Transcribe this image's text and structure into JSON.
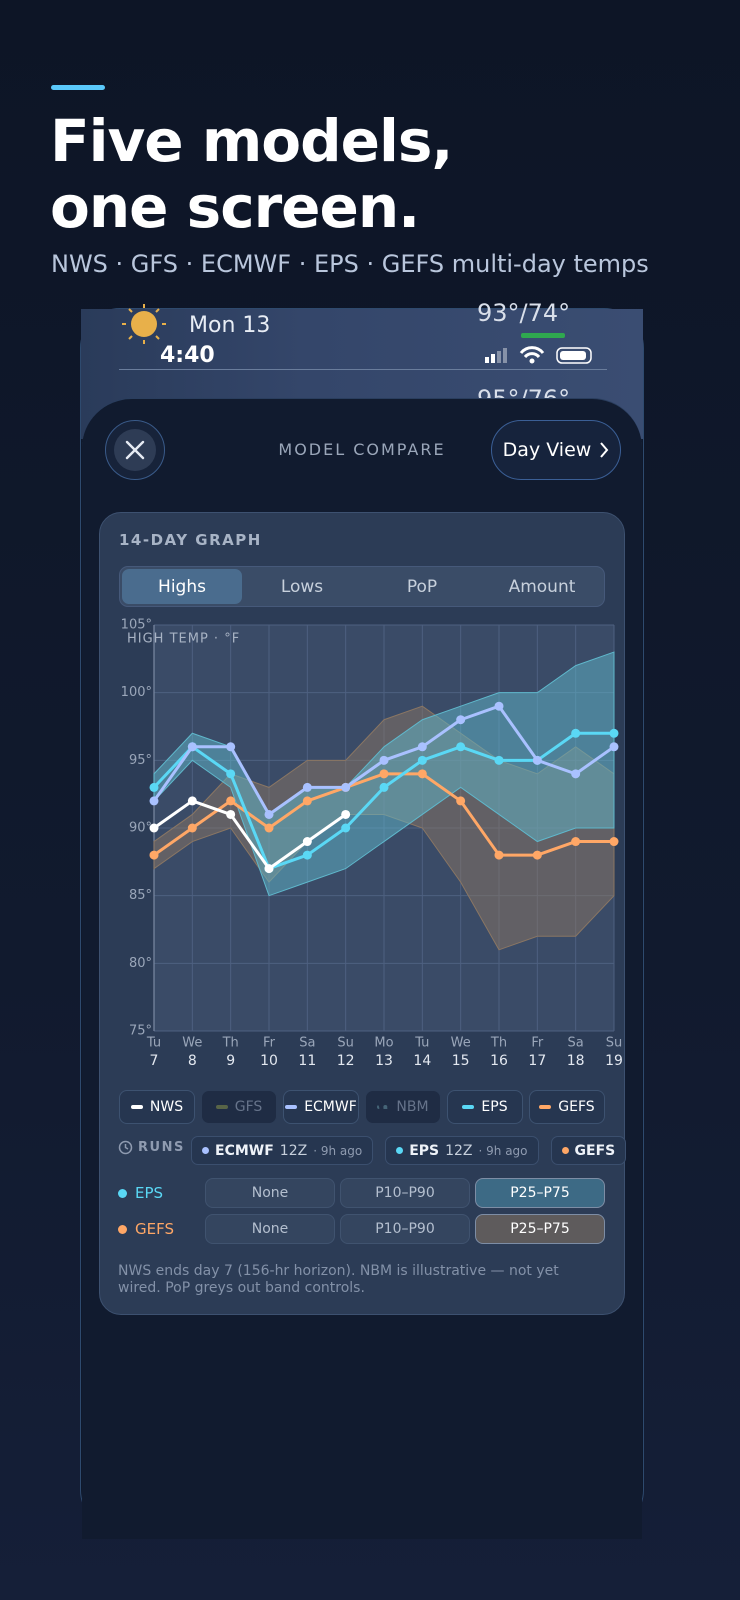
{
  "header": {
    "title_lines": [
      "Five models,",
      "one screen."
    ],
    "subtitle": "NWS · GFS · ECMWF · EPS · GEFS multi-day temps"
  },
  "background_row": {
    "day": "Mon 13",
    "time": "4:40",
    "temps": "93°/74°",
    "next_temps": "95°/76°"
  },
  "sheet": {
    "title": "MODEL COMPARE",
    "day_view": "Day View"
  },
  "card": {
    "title": "14-DAY GRAPH",
    "tabs": [
      "Highs",
      "Lows",
      "PoP",
      "Amount"
    ],
    "active_tab": 0,
    "runs": {
      "label": "RUNS",
      "items": [
        {
          "model": "ECMWF",
          "color": "#a9c1ff",
          "run": "12Z",
          "age": "· 9h ago"
        },
        {
          "model": "EPS",
          "color": "#5ad8f5",
          "run": "12Z",
          "age": "· 9h ago"
        },
        {
          "model": "GEFS",
          "color": "#ffa766"
        }
      ]
    },
    "band_controls": {
      "options": [
        "None",
        "P10–P90",
        "P25–P75"
      ],
      "rows": [
        {
          "model": "EPS",
          "color": "#5ad8f5",
          "selected": 2,
          "selected_color": "#3d6a85"
        },
        {
          "model": "GEFS",
          "color": "#ffa766",
          "selected": 2,
          "selected_color": "#5e5b5c"
        }
      ]
    },
    "footnote": "NWS ends day 7 (156-hr horizon). NBM is illustrative — not yet wired. PoP greys out band controls."
  },
  "chart_data": {
    "type": "line",
    "y_label": "HIGH TEMP · °F",
    "categories": [
      "Tu",
      "We",
      "Th",
      "Fr",
      "Sa",
      "Su",
      "Mo",
      "Tu",
      "We",
      "Th",
      "Fr",
      "Sa",
      "Su"
    ],
    "category_days": [
      7,
      8,
      9,
      10,
      11,
      12,
      13,
      14,
      15,
      16,
      17,
      18,
      19
    ],
    "ylim": [
      75,
      105
    ],
    "yticks": [
      {
        "value": 75,
        "label": "75°"
      },
      {
        "value": 80,
        "label": "80°"
      },
      {
        "value": 85,
        "label": "85°"
      },
      {
        "value": 90,
        "label": "90°"
      },
      {
        "value": 95,
        "label": "95°"
      },
      {
        "value": 100,
        "label": "100°"
      },
      {
        "value": 105,
        "label": "105°"
      }
    ],
    "grid": true,
    "series": [
      {
        "name": "NWS",
        "color": "#ffffff",
        "enabled": true,
        "values": [
          90,
          92,
          91,
          87,
          89,
          91,
          null,
          null,
          null,
          null,
          null,
          null,
          null
        ]
      },
      {
        "name": "GFS",
        "color": "#7f8a4a",
        "enabled": false,
        "values": [
          null,
          null,
          null,
          null,
          null,
          null,
          null,
          null,
          null,
          null,
          null,
          null,
          null
        ]
      },
      {
        "name": "ECMWF",
        "color": "#a9c1ff",
        "enabled": true,
        "values": [
          92,
          96,
          96,
          91,
          93,
          93,
          95,
          96,
          98,
          99,
          95,
          94,
          96
        ]
      },
      {
        "name": "NBM",
        "color": "#5f8a99",
        "enabled": false,
        "line_style": "dotted",
        "values": [
          null,
          null,
          null,
          null,
          null,
          null,
          null,
          null,
          null,
          null,
          null,
          null,
          null
        ]
      },
      {
        "name": "EPS",
        "color": "#5ad8f5",
        "enabled": true,
        "values": [
          93,
          96,
          94,
          87,
          88,
          90,
          93,
          95,
          96,
          95,
          95,
          97,
          97
        ],
        "band": {
          "color": "#5fb8cc",
          "upper": [
            94,
            97,
            96,
            91,
            93,
            93,
            96,
            98,
            99,
            100,
            100,
            102,
            103
          ],
          "lower": [
            92,
            95,
            93,
            85,
            86,
            87,
            89,
            91,
            93,
            91,
            89,
            90,
            90
          ]
        }
      },
      {
        "name": "GEFS",
        "color": "#ffa766",
        "enabled": true,
        "values": [
          88,
          90,
          92,
          90,
          92,
          93,
          94,
          94,
          92,
          88,
          88,
          89,
          89
        ],
        "band": {
          "color": "#8a7663",
          "upper": [
            89,
            91,
            94,
            93,
            95,
            95,
            98,
            99,
            97,
            95,
            94,
            96,
            94
          ],
          "lower": [
            87,
            89,
            90,
            86,
            89,
            91,
            91,
            90,
            86,
            81,
            82,
            82,
            85
          ]
        }
      }
    ]
  }
}
